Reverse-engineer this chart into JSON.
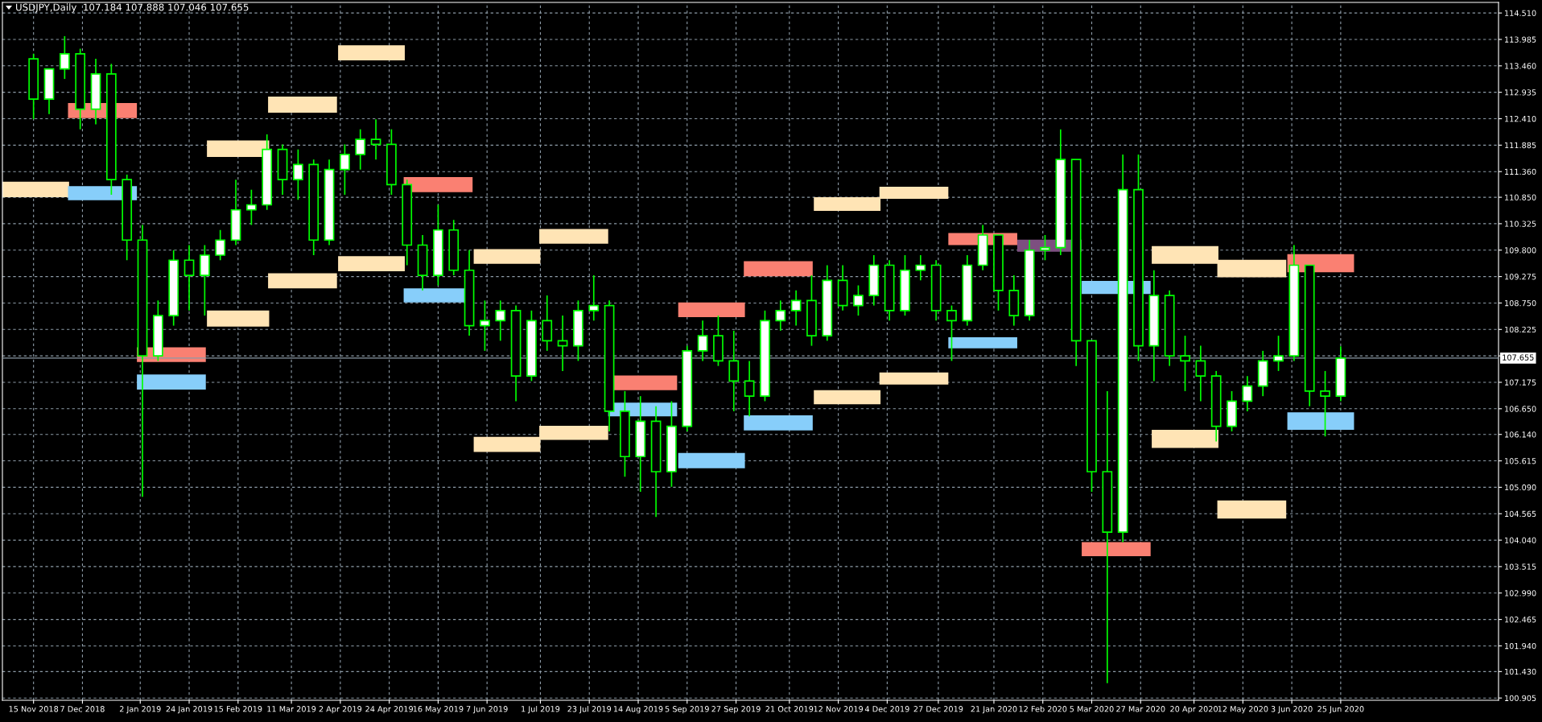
{
  "chart_data": {
    "type": "candlestick",
    "title": "USDJPY,Daily  107.184 107.888 107.046 107.655",
    "color": "#00ff00",
    "x": [
      "2018-11-15",
      "2018-11-22",
      "2018-11-29",
      "2018-12-06",
      "2018-12-13",
      "2018-12-20",
      "2018-12-27",
      "2019-01-03",
      "2019-01-10",
      "2019-01-17",
      "2019-01-24",
      "2019-01-31",
      "2019-02-07",
      "2019-02-14",
      "2019-02-21",
      "2019-02-28",
      "2019-03-07",
      "2019-03-14",
      "2019-03-21",
      "2019-03-28",
      "2019-04-04",
      "2019-04-11",
      "2019-04-18",
      "2019-04-25",
      "2019-05-02",
      "2019-05-09",
      "2019-05-16",
      "2019-05-23",
      "2019-05-30",
      "2019-06-06",
      "2019-06-13",
      "2019-06-20",
      "2019-06-27",
      "2019-07-04",
      "2019-07-11",
      "2019-07-18",
      "2019-07-25",
      "2019-08-01",
      "2019-08-08",
      "2019-08-15",
      "2019-08-22",
      "2019-08-29",
      "2019-09-05",
      "2019-09-12",
      "2019-09-19",
      "2019-09-26",
      "2019-10-03",
      "2019-10-10",
      "2019-10-17",
      "2019-10-24",
      "2019-10-31",
      "2019-11-07",
      "2019-11-14",
      "2019-11-21",
      "2019-11-28",
      "2019-12-05",
      "2019-12-12",
      "2019-12-19",
      "2019-12-26",
      "2020-01-02",
      "2020-01-09",
      "2020-01-16",
      "2020-01-23",
      "2020-01-30",
      "2020-02-06",
      "2020-02-13",
      "2020-02-20",
      "2020-02-27",
      "2020-03-05",
      "2020-03-12",
      "2020-03-19",
      "2020-03-26",
      "2020-04-02",
      "2020-04-09",
      "2020-04-16",
      "2020-04-23",
      "2020-04-30",
      "2020-05-07",
      "2020-05-14",
      "2020-05-21",
      "2020-05-28",
      "2020-06-04",
      "2020-06-11",
      "2020-06-18",
      "2020-06-25"
    ],
    "ohlc": [
      [
        113.6,
        113.7,
        112.4,
        112.8
      ],
      [
        112.8,
        113.4,
        112.5,
        113.4
      ],
      [
        113.4,
        114.05,
        113.2,
        113.7
      ],
      [
        113.7,
        113.8,
        112.2,
        112.6
      ],
      [
        112.6,
        113.6,
        112.3,
        113.3
      ],
      [
        113.3,
        113.5,
        110.9,
        111.2
      ],
      [
        111.2,
        111.3,
        109.6,
        110.0
      ],
      [
        110.0,
        110.3,
        104.9,
        107.7
      ],
      [
        107.7,
        108.8,
        107.6,
        108.5
      ],
      [
        108.5,
        109.8,
        108.3,
        109.6
      ],
      [
        109.6,
        109.9,
        108.6,
        109.3
      ],
      [
        109.3,
        109.9,
        108.5,
        109.7
      ],
      [
        109.7,
        110.2,
        109.6,
        110.0
      ],
      [
        110.0,
        111.2,
        109.9,
        110.6
      ],
      [
        110.6,
        111.0,
        110.3,
        110.7
      ],
      [
        110.7,
        112.1,
        110.6,
        111.8
      ],
      [
        111.8,
        111.9,
        110.9,
        111.2
      ],
      [
        111.2,
        111.8,
        110.8,
        111.5
      ],
      [
        111.5,
        111.6,
        109.7,
        110.0
      ],
      [
        110.0,
        111.6,
        109.9,
        111.4
      ],
      [
        111.4,
        111.9,
        110.9,
        111.7
      ],
      [
        111.7,
        112.2,
        111.4,
        112.0
      ],
      [
        112.0,
        112.4,
        111.6,
        111.9
      ],
      [
        111.9,
        112.2,
        110.9,
        111.1
      ],
      [
        111.1,
        111.2,
        109.5,
        109.9
      ],
      [
        109.9,
        110.1,
        109.0,
        109.3
      ],
      [
        109.3,
        110.7,
        109.1,
        110.2
      ],
      [
        110.2,
        110.4,
        109.3,
        109.4
      ],
      [
        109.4,
        109.8,
        108.1,
        108.3
      ],
      [
        108.3,
        108.8,
        107.8,
        108.4
      ],
      [
        108.4,
        108.8,
        108.0,
        108.6
      ],
      [
        108.6,
        108.7,
        106.8,
        107.3
      ],
      [
        107.3,
        108.6,
        107.2,
        108.4
      ],
      [
        108.4,
        108.9,
        107.8,
        108.0
      ],
      [
        108.0,
        108.5,
        107.4,
        107.9
      ],
      [
        107.9,
        108.8,
        107.6,
        108.6
      ],
      [
        108.6,
        109.3,
        108.4,
        108.7
      ],
      [
        108.7,
        108.8,
        106.2,
        106.6
      ],
      [
        106.6,
        107.0,
        105.3,
        105.7
      ],
      [
        105.7,
        106.9,
        105.0,
        106.4
      ],
      [
        106.4,
        106.7,
        104.5,
        105.4
      ],
      [
        105.4,
        106.8,
        105.1,
        106.3
      ],
      [
        106.3,
        107.9,
        106.2,
        107.8
      ],
      [
        107.8,
        108.4,
        107.6,
        108.1
      ],
      [
        108.1,
        108.5,
        107.5,
        107.6
      ],
      [
        107.6,
        108.2,
        106.6,
        107.2
      ],
      [
        107.2,
        107.6,
        106.5,
        106.9
      ],
      [
        106.9,
        108.6,
        106.8,
        108.4
      ],
      [
        108.4,
        108.8,
        108.2,
        108.6
      ],
      [
        108.6,
        109.0,
        108.3,
        108.8
      ],
      [
        108.8,
        109.3,
        107.9,
        108.1
      ],
      [
        108.1,
        109.5,
        108.0,
        109.2
      ],
      [
        109.2,
        109.5,
        108.6,
        108.7
      ],
      [
        108.7,
        109.1,
        108.5,
        108.9
      ],
      [
        108.9,
        109.7,
        108.7,
        109.5
      ],
      [
        109.5,
        109.6,
        108.4,
        108.6
      ],
      [
        108.6,
        109.7,
        108.5,
        109.4
      ],
      [
        109.4,
        109.7,
        109.2,
        109.5
      ],
      [
        109.5,
        109.6,
        108.4,
        108.6
      ],
      [
        108.6,
        108.7,
        107.6,
        108.4
      ],
      [
        108.4,
        109.7,
        108.3,
        109.5
      ],
      [
        109.5,
        110.3,
        109.4,
        110.1
      ],
      [
        110.1,
        110.1,
        108.6,
        109.0
      ],
      [
        109.0,
        109.3,
        108.3,
        108.5
      ],
      [
        108.5,
        110.0,
        108.4,
        109.8
      ],
      [
        109.8,
        110.1,
        109.6,
        109.85
      ],
      [
        109.85,
        112.2,
        109.7,
        111.6
      ],
      [
        111.6,
        111.6,
        107.5,
        108.0
      ],
      [
        108.0,
        108.0,
        105.0,
        105.4
      ],
      [
        105.4,
        107.0,
        101.2,
        104.2
      ],
      [
        104.2,
        111.7,
        104.0,
        111.0
      ],
      [
        111.0,
        111.7,
        107.6,
        107.9
      ],
      [
        107.9,
        109.4,
        107.2,
        108.9
      ],
      [
        108.9,
        109.0,
        107.5,
        107.7
      ],
      [
        107.7,
        108.1,
        107.0,
        107.6
      ],
      [
        107.6,
        107.9,
        106.8,
        107.3
      ],
      [
        107.3,
        107.4,
        106.0,
        106.3
      ],
      [
        106.3,
        107.0,
        106.2,
        106.8
      ],
      [
        106.8,
        107.3,
        106.6,
        107.1
      ],
      [
        107.1,
        107.8,
        106.9,
        107.6
      ],
      [
        107.6,
        108.1,
        107.4,
        107.7
      ],
      [
        107.7,
        109.9,
        107.6,
        109.5
      ],
      [
        109.5,
        109.5,
        106.7,
        107.0
      ],
      [
        107.0,
        107.4,
        106.1,
        106.9
      ],
      [
        106.9,
        107.888,
        106.8,
        107.655
      ]
    ],
    "series": [
      {
        "type": "bar",
        "color": "#ffe4b5",
        "x": [
          "2018-11-16",
          "2019-02-15",
          "2019-03-16",
          "2019-04-16",
          "2019-06-16",
          "2019-07-16",
          "2019-11-16",
          "2019-12-16",
          "2020-04-16",
          "2020-05-16"
        ],
        "base": [
          110.85,
          111.65,
          112.53,
          113.57,
          109.53,
          109.93,
          110.58,
          110.82,
          109.53,
          109.26
        ],
        "values": [
          0.31,
          0.33,
          0.32,
          0.3,
          0.29,
          0.29,
          0.27,
          0.24,
          0.35,
          0.35
        ]
      },
      {
        "type": "bar",
        "color": "#ffe4b5",
        "x": [
          "2019-02-15",
          "2019-03-16",
          "2019-04-16",
          "2019-06-16",
          "2019-07-16",
          "2019-11-16",
          "2019-12-16",
          "2020-04-16",
          "2020-05-16"
        ],
        "base": [
          108.28,
          109.04,
          109.38,
          105.79,
          106.03,
          106.74,
          107.13,
          105.87,
          104.47
        ],
        "values": [
          0.32,
          0.3,
          0.3,
          0.3,
          0.28,
          0.28,
          0.24,
          0.36,
          0.36
        ]
      },
      {
        "type": "bar",
        "color": "#fa8072",
        "x": [
          "2018-12-16",
          "2019-01-16",
          "2019-05-16",
          "2019-08-16",
          "2019-09-16",
          "2019-10-16",
          "2020-01-16",
          "2020-03-16",
          "2020-06-16"
        ],
        "base": [
          112.42,
          107.58,
          110.95,
          107.02,
          108.47,
          109.28,
          109.9,
          103.72,
          109.36
        ],
        "values": [
          0.3,
          0.29,
          0.3,
          0.29,
          0.29,
          0.3,
          0.24,
          0.28,
          0.36
        ]
      },
      {
        "type": "bar",
        "color": "#87cefa",
        "x": [
          "2018-12-16",
          "2019-01-16",
          "2019-05-16",
          "2019-08-16",
          "2019-09-16",
          "2019-10-16",
          "2020-01-16",
          "2020-03-16",
          "2020-06-16"
        ],
        "base": [
          110.79,
          107.03,
          108.76,
          106.5,
          105.47,
          106.22,
          107.85,
          108.93,
          106.23
        ],
        "values": [
          0.28,
          0.3,
          0.28,
          0.27,
          0.3,
          0.3,
          0.22,
          0.26,
          0.35
        ]
      },
      {
        "type": "bar",
        "color": "#7d4f80",
        "x": [
          "2020-02-15"
        ],
        "base": [
          109.77
        ],
        "values": [
          0.24
        ]
      }
    ],
    "xlim": [
      "2018-11-01",
      "2020-09-04"
    ],
    "xticks": [
      {
        "value": "2018-11-15",
        "label": "15 Nov 2018"
      },
      {
        "value": "2018-12-07",
        "label": "7 Dec 2018"
      },
      {
        "value": "2019-01-02",
        "label": "2 Jan 2019"
      },
      {
        "value": "2019-01-24",
        "label": "24 Jan 2019"
      },
      {
        "value": "2019-02-15",
        "label": "15 Feb 2019"
      },
      {
        "value": "2019-03-11",
        "label": "11 Mar 2019"
      },
      {
        "value": "2019-04-02",
        "label": "2 Apr 2019"
      },
      {
        "value": "2019-04-24",
        "label": "24 Apr 2019"
      },
      {
        "value": "2019-05-16",
        "label": "16 May 2019"
      },
      {
        "value": "2019-06-07",
        "label": "7 Jun 2019"
      },
      {
        "value": "2019-07-01",
        "label": "1 Jul 2019"
      },
      {
        "value": "2019-07-23",
        "label": "23 Jul 2019"
      },
      {
        "value": "2019-08-14",
        "label": "14 Aug 2019"
      },
      {
        "value": "2019-09-05",
        "label": "5 Sep 2019"
      },
      {
        "value": "2019-09-27",
        "label": "27 Sep 2019"
      },
      {
        "value": "2019-10-21",
        "label": "21 Oct 2019"
      },
      {
        "value": "2019-11-12",
        "label": "12 Nov 2019"
      },
      {
        "value": "2019-12-04",
        "label": "4 Dec 2019"
      },
      {
        "value": "2019-12-27",
        "label": "27 Dec 2019"
      },
      {
        "value": "2020-01-21",
        "label": "21 Jan 2020"
      },
      {
        "value": "2020-02-12",
        "label": "12 Feb 2020"
      },
      {
        "value": "2020-03-05",
        "label": "5 Mar 2020"
      },
      {
        "value": "2020-03-27",
        "label": "27 Mar 2020"
      },
      {
        "value": "2020-04-20",
        "label": "20 Apr 2020"
      },
      {
        "value": "2020-05-12",
        "label": "12 May 2020"
      },
      {
        "value": "2020-06-03",
        "label": "3 Jun 2020"
      },
      {
        "value": "2020-06-25",
        "label": "25 Jun 2020"
      }
    ],
    "ylim": [
      100.86,
      114.72
    ],
    "yticks": [
      {
        "value": 114.51,
        "label": "114.510"
      },
      113.985,
      {
        "value": 113.46,
        "label": "113.460"
      },
      112.935,
      {
        "value": 112.41,
        "label": "112.410"
      },
      111.885,
      {
        "value": 111.36,
        "label": "111.360"
      },
      {
        "value": 110.85,
        "label": "110.850"
      },
      110.325,
      {
        "value": 109.8,
        "label": "109.800"
      },
      109.275,
      {
        "value": 108.75,
        "label": "108.750"
      },
      108.225,
      {
        "value": 107.7,
        "label": null
      },
      107.175,
      {
        "value": 106.65,
        "label": "106.650"
      },
      {
        "value": 106.14,
        "label": "106.140"
      },
      105.615,
      {
        "value": 105.09,
        "label": "105.090"
      },
      104.565,
      {
        "value": 104.04,
        "label": "104.040"
      },
      103.515,
      {
        "value": 102.99,
        "label": "102.990"
      },
      102.465,
      {
        "value": 101.94,
        "label": "101.940"
      },
      {
        "value": 101.43,
        "label": "101.430"
      },
      100.905
    ],
    "grid": true,
    "ref_lines": [
      {
        "axis": "y",
        "value": 107.655,
        "label": "107.655",
        "color": "#8c9aa6"
      }
    ]
  }
}
